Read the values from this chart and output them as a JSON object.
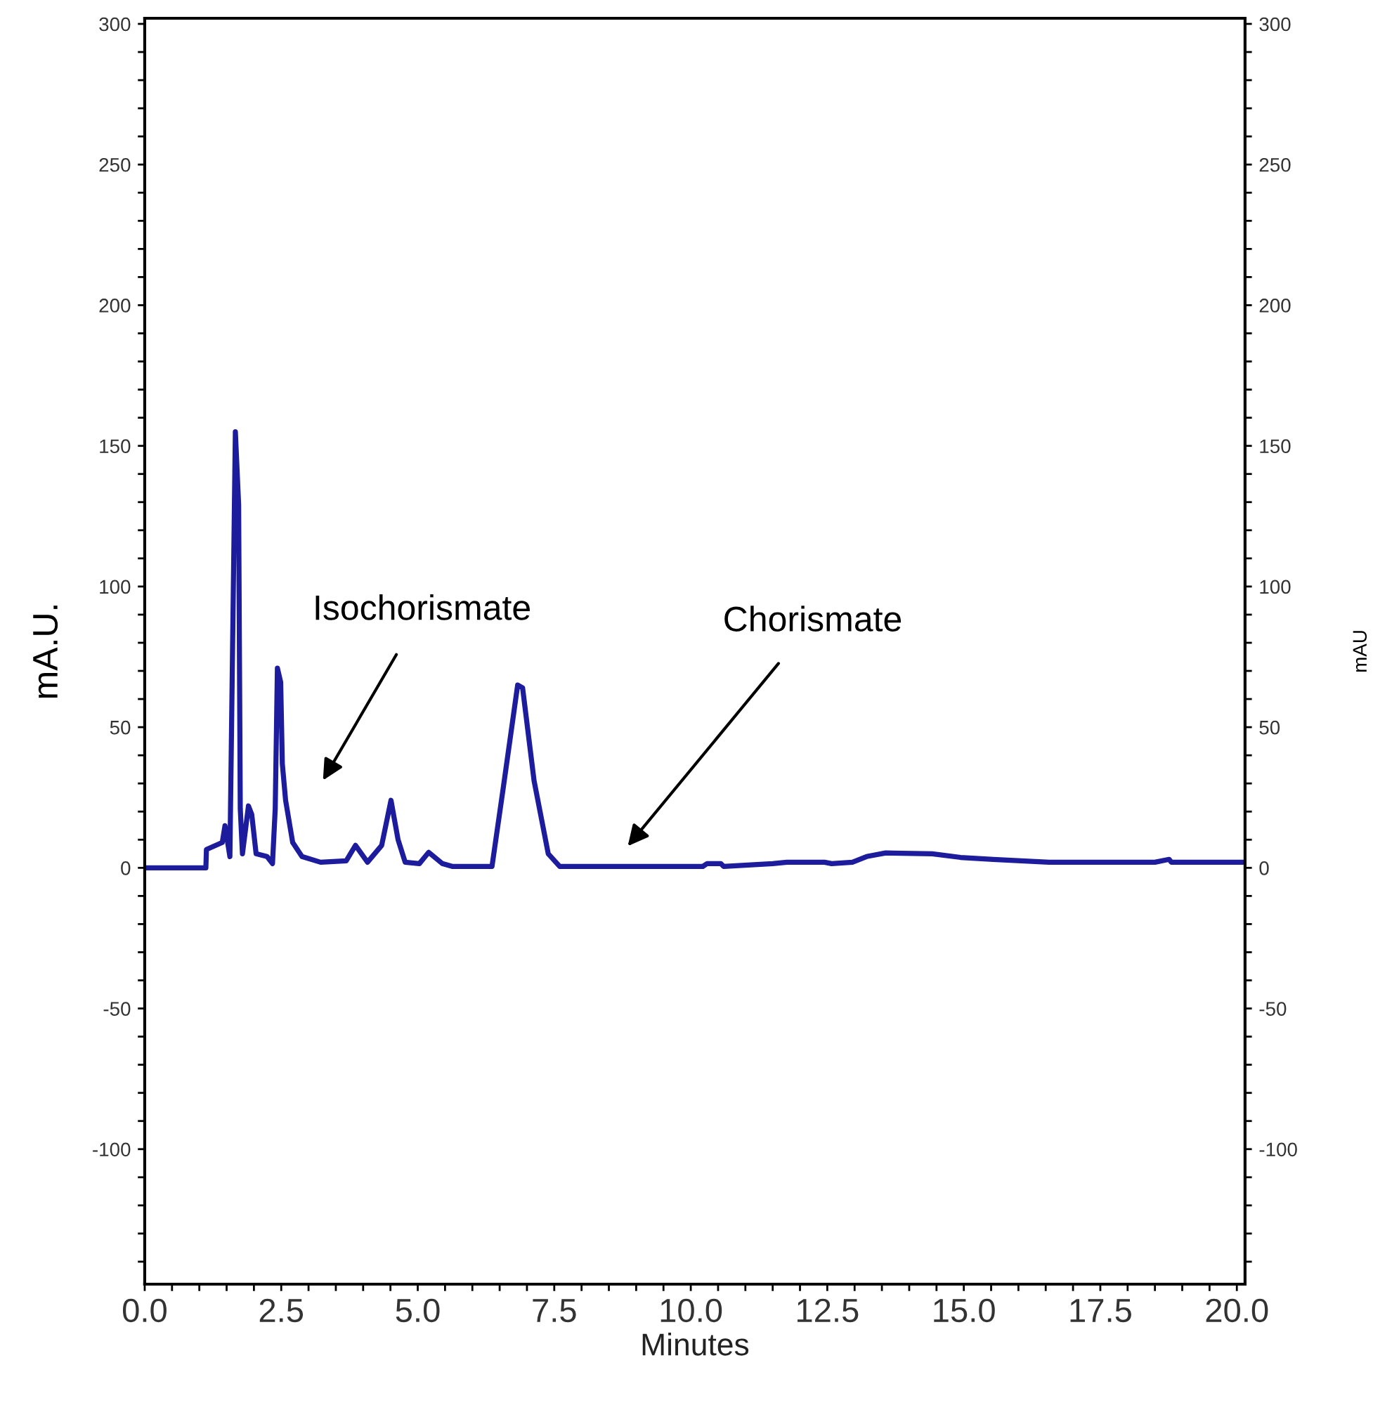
{
  "chart_data": {
    "type": "line",
    "xlabel": "Minutes",
    "ylabel": "mA.U.",
    "y2label": "mAU",
    "series": [
      {
        "color": "#1c1c9c",
        "axis": "y",
        "x": [
          0,
          1.12,
          1.13,
          1.42,
          1.47,
          1.56,
          1.66,
          1.72,
          1.75,
          1.79,
          1.9,
          1.96,
          2.04,
          2.24,
          2.34,
          2.39,
          2.43,
          2.49,
          2.52,
          2.58,
          2.71,
          2.88,
          3.22,
          3.69,
          3.86,
          4.08,
          4.34,
          4.51,
          4.64,
          4.77,
          5.03,
          5.2,
          5.45,
          5.63,
          6.36,
          6.57,
          6.83,
          6.92,
          7.13,
          7.39,
          7.6,
          10.22,
          10.3,
          10.55,
          10.6,
          11.5,
          11.76,
          12.45,
          12.58,
          12.96,
          13.22,
          13.57,
          14.42,
          14.94,
          15.54,
          16.56,
          18.5,
          18.76,
          18.8,
          20.15
        ],
        "values": [
          0,
          0,
          6.5,
          9,
          15,
          4,
          155,
          129,
          21,
          5,
          22,
          19,
          5,
          4,
          1.5,
          21,
          71,
          66,
          37,
          24,
          9,
          4,
          2,
          2.5,
          8,
          2,
          8,
          24,
          10,
          2,
          1.5,
          5.5,
          1.5,
          0.5,
          0.5,
          29,
          65,
          64,
          31,
          5,
          0.5,
          0.5,
          1.5,
          1.5,
          0.5,
          1.5,
          2,
          2,
          1.5,
          2,
          4,
          5.3,
          5,
          3.7,
          3,
          2,
          2,
          3,
          2,
          2
        ]
      }
    ],
    "xlim": [
      0,
      20.15
    ],
    "ylim": [
      -148,
      302
    ],
    "y2lim": [
      -148,
      302
    ],
    "xticks": [
      {
        "value": 0,
        "label": "0.0"
      },
      {
        "value": 0.5,
        "label": null
      },
      {
        "value": 1,
        "label": null
      },
      {
        "value": 1.5,
        "label": null
      },
      {
        "value": 2,
        "label": null
      },
      {
        "value": 2.5,
        "label": "2.5"
      },
      {
        "value": 3,
        "label": null
      },
      {
        "value": 3.5,
        "label": null
      },
      {
        "value": 4,
        "label": null
      },
      {
        "value": 4.5,
        "label": null
      },
      {
        "value": 5,
        "label": "5.0"
      },
      {
        "value": 5.5,
        "label": null
      },
      {
        "value": 6,
        "label": null
      },
      {
        "value": 6.5,
        "label": null
      },
      {
        "value": 7,
        "label": null
      },
      {
        "value": 7.5,
        "label": "7.5"
      },
      {
        "value": 8,
        "label": null
      },
      {
        "value": 8.5,
        "label": null
      },
      {
        "value": 9,
        "label": null
      },
      {
        "value": 9.5,
        "label": null
      },
      {
        "value": 10,
        "label": "10.0"
      },
      {
        "value": 10.5,
        "label": null
      },
      {
        "value": 11,
        "label": null
      },
      {
        "value": 11.5,
        "label": null
      },
      {
        "value": 12,
        "label": null
      },
      {
        "value": 12.5,
        "label": "12.5"
      },
      {
        "value": 13,
        "label": null
      },
      {
        "value": 13.5,
        "label": null
      },
      {
        "value": 14,
        "label": null
      },
      {
        "value": 14.5,
        "label": null
      },
      {
        "value": 15,
        "label": "15.0"
      },
      {
        "value": 15.5,
        "label": null
      },
      {
        "value": 16,
        "label": null
      },
      {
        "value": 16.5,
        "label": null
      },
      {
        "value": 17,
        "label": null
      },
      {
        "value": 17.5,
        "label": "17.5"
      },
      {
        "value": 18,
        "label": null
      },
      {
        "value": 18.5,
        "label": null
      },
      {
        "value": 19,
        "label": null
      },
      {
        "value": 19.5,
        "label": null
      },
      {
        "value": 20,
        "label": "20.0"
      }
    ],
    "yticks": [
      {
        "value": -140,
        "label": null
      },
      {
        "value": -130,
        "label": null
      },
      {
        "value": -120,
        "label": null
      },
      {
        "value": -110,
        "label": null
      },
      -100,
      {
        "value": -90,
        "label": null
      },
      {
        "value": -80,
        "label": null
      },
      {
        "value": -70,
        "label": null
      },
      {
        "value": -60,
        "label": null
      },
      -50,
      {
        "value": -40,
        "label": null
      },
      {
        "value": -30,
        "label": null
      },
      {
        "value": -20,
        "label": null
      },
      {
        "value": -10,
        "label": null
      },
      0,
      {
        "value": 10,
        "label": null
      },
      {
        "value": 20,
        "label": null
      },
      {
        "value": 30,
        "label": null
      },
      {
        "value": 40,
        "label": null
      },
      50,
      {
        "value": 60,
        "label": null
      },
      {
        "value": 70,
        "label": null
      },
      {
        "value": 80,
        "label": null
      },
      {
        "value": 90,
        "label": null
      },
      100,
      {
        "value": 110,
        "label": null
      },
      {
        "value": 120,
        "label": null
      },
      {
        "value": 130,
        "label": null
      },
      {
        "value": 140,
        "label": null
      },
      150,
      {
        "value": 160,
        "label": null
      },
      {
        "value": 170,
        "label": null
      },
      {
        "value": 180,
        "label": null
      },
      {
        "value": 190,
        "label": null
      },
      200,
      {
        "value": 210,
        "label": null
      },
      {
        "value": 220,
        "label": null
      },
      {
        "value": 230,
        "label": null
      },
      {
        "value": 240,
        "label": null
      },
      250,
      {
        "value": 260,
        "label": null
      },
      {
        "value": 270,
        "label": null
      },
      {
        "value": 280,
        "label": null
      },
      {
        "value": 290,
        "label": null
      },
      300
    ],
    "y2ticks": [
      {
        "value": -140,
        "label": null
      },
      {
        "value": -130,
        "label": null
      },
      {
        "value": -120,
        "label": null
      },
      {
        "value": -110,
        "label": null
      },
      -100,
      {
        "value": -90,
        "label": null
      },
      {
        "value": -80,
        "label": null
      },
      {
        "value": -70,
        "label": null
      },
      {
        "value": -60,
        "label": null
      },
      -50,
      {
        "value": -40,
        "label": null
      },
      {
        "value": -30,
        "label": null
      },
      {
        "value": -20,
        "label": null
      },
      {
        "value": -10,
        "label": null
      },
      0,
      {
        "value": 10,
        "label": null
      },
      {
        "value": 20,
        "label": null
      },
      {
        "value": 30,
        "label": null
      },
      {
        "value": 40,
        "label": null
      },
      50,
      {
        "value": 60,
        "label": null
      },
      {
        "value": 70,
        "label": null
      },
      {
        "value": 80,
        "label": null
      },
      {
        "value": 90,
        "label": null
      },
      100,
      {
        "value": 110,
        "label": null
      },
      {
        "value": 120,
        "label": null
      },
      {
        "value": 130,
        "label": null
      },
      {
        "value": 140,
        "label": null
      },
      150,
      {
        "value": 160,
        "label": null
      },
      {
        "value": 170,
        "label": null
      },
      {
        "value": 180,
        "label": null
      },
      {
        "value": 190,
        "label": null
      },
      200,
      {
        "value": 210,
        "label": null
      },
      {
        "value": 220,
        "label": null
      },
      {
        "value": 230,
        "label": null
      },
      {
        "value": 240,
        "label": null
      },
      250,
      {
        "value": 260,
        "label": null
      },
      {
        "value": 270,
        "label": null
      },
      {
        "value": 280,
        "label": null
      },
      {
        "value": 290,
        "label": null
      },
      300
    ],
    "annotations": [
      "Isochorismate",
      "Chorismate"
    ],
    "grid": false,
    "legend": false
  }
}
